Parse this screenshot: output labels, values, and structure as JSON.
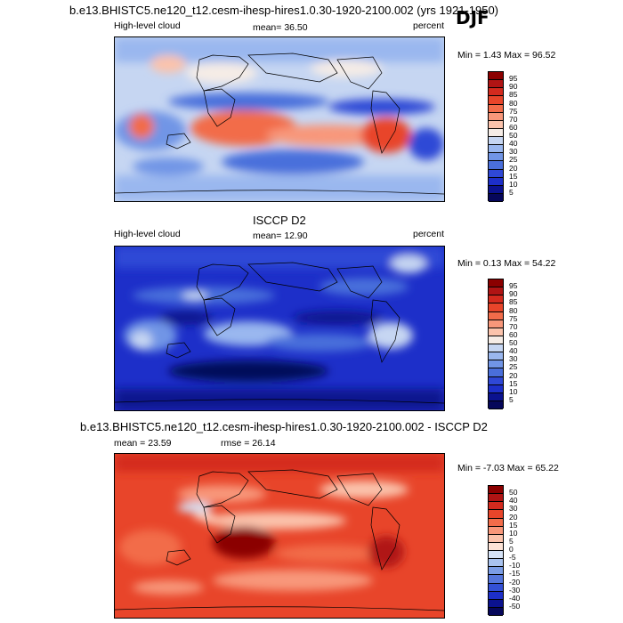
{
  "season": "DJF",
  "panels": [
    {
      "title": "b.e13.BHISTC5.ne120_t12.cesm-ihesp-hires1.0.30-1920-2100.002 (yrs 1921-1950)",
      "left_label": "High-level cloud",
      "center_label": "mean=  36.50",
      "right_label": "percent",
      "minmax": "Min =   1.43 Max =  96.52",
      "levels": [
        "95",
        "90",
        "85",
        "80",
        "75",
        "70",
        "60",
        "50",
        "40",
        "30",
        "25",
        "20",
        "15",
        "10",
        "5"
      ]
    },
    {
      "title": "ISCCP D2",
      "left_label": "High-level cloud",
      "center_label": "mean=  12.90",
      "right_label": "percent",
      "minmax": "Min =   0.13 Max =  54.22",
      "levels": [
        "95",
        "90",
        "85",
        "80",
        "75",
        "70",
        "60",
        "50",
        "40",
        "30",
        "25",
        "20",
        "15",
        "10",
        "5"
      ]
    },
    {
      "title": "b.e13.BHISTC5.ne120_t12.cesm-ihesp-hires1.0.30-1920-2100.002 - ISCCP D2",
      "left_label": "mean =  23.59",
      "center_label": "rmse =  26.14",
      "right_label": "",
      "minmax": "Min =  -7.03 Max =  65.22",
      "levels": [
        "50",
        "40",
        "30",
        "20",
        "15",
        "10",
        "5",
        "0",
        "-5",
        "-10",
        "-15",
        "-20",
        "-30",
        "-40",
        "-50"
      ]
    }
  ],
  "colors": {
    "abs_scale": [
      "#8b0000",
      "#b01414",
      "#d42a1e",
      "#e8452a",
      "#f26c4a",
      "#f8977a",
      "#fbc3ac",
      "#f5ece6",
      "#c6d6f2",
      "#9ab7ef",
      "#7195e6",
      "#4a6fdb",
      "#2f48d6",
      "#1d2fc9",
      "#0b128f",
      "#06075a"
    ],
    "diff_scale": [
      "#8b0000",
      "#b01414",
      "#d42a1e",
      "#e8452a",
      "#f26c4a",
      "#f8977a",
      "#fbc3ac",
      "#fde3d6",
      "#d5e2f6",
      "#a9c3ef",
      "#7b9de6",
      "#5576dc",
      "#3350d5",
      "#1d2fc9",
      "#0b128f",
      "#06075a"
    ]
  }
}
